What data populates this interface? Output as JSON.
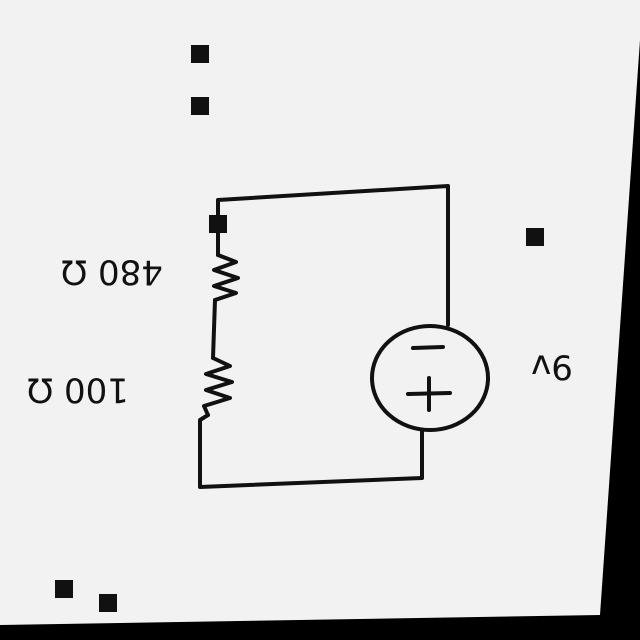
{
  "labels": {
    "resistor_top": "480 Ω",
    "resistor_bottom": "100 Ω",
    "source": "9v"
  },
  "source_polarity": {
    "top_symbol": "−",
    "bottom_symbol": "+"
  },
  "colors": {
    "paper": "#f2f2f2",
    "ink": "#111111",
    "background": "#000000"
  }
}
